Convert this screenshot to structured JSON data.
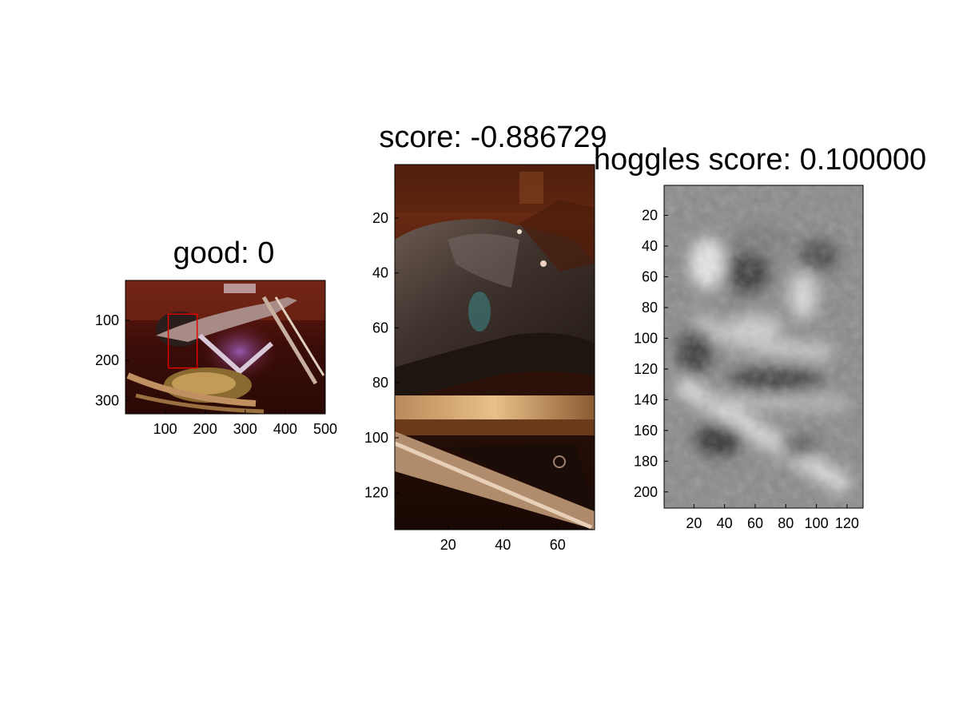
{
  "chart_data": [
    {
      "type": "image",
      "title": "good: 0",
      "content": "motorcycle photograph with red bounding box around seat",
      "xticks": [
        "100",
        "200",
        "300",
        "400",
        "500"
      ],
      "yticks": [
        "100",
        "200",
        "300"
      ],
      "xlim": [
        1,
        500
      ],
      "ylim": [
        1,
        333
      ],
      "xtick_values": [
        100,
        200,
        300,
        400,
        500
      ],
      "ytick_values": [
        100,
        200,
        300
      ],
      "box": {
        "x0": 108,
        "x1": 180,
        "y0": 85,
        "y1": 219,
        "color": "#dd0000"
      }
    },
    {
      "type": "image",
      "title": "score: -0.886729",
      "content": "cropped photo of motorcycle leather seat",
      "xticks": [
        "20",
        "40",
        "60"
      ],
      "yticks": [
        "20",
        "40",
        "60",
        "80",
        "100",
        "120"
      ],
      "xlim": [
        0.5,
        73.5
      ],
      "ylim": [
        0.5,
        133.5
      ],
      "xtick_values": [
        20,
        40,
        60
      ],
      "ytick_values": [
        20,
        40,
        60,
        80,
        100,
        120
      ]
    },
    {
      "type": "image",
      "title": "hoggles score: 0.100000",
      "content": "grayscale HOG inverse visualization",
      "xticks": [
        "20",
        "40",
        "60",
        "80",
        "100",
        "120"
      ],
      "yticks": [
        "20",
        "40",
        "60",
        "80",
        "100",
        "120",
        "140",
        "160",
        "180",
        "200"
      ],
      "xlim": [
        0.5,
        130.5
      ],
      "ylim": [
        0.5,
        210.5
      ],
      "xtick_values": [
        20,
        40,
        60,
        80,
        100,
        120
      ],
      "ytick_values": [
        20,
        40,
        60,
        80,
        100,
        120,
        140,
        160,
        180,
        200
      ]
    }
  ]
}
